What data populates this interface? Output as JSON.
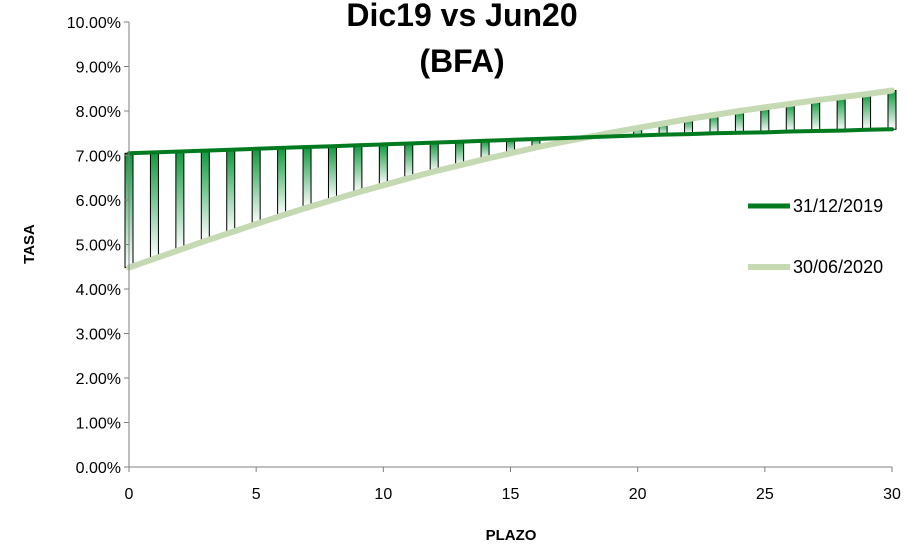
{
  "chart_data": {
    "type": "line",
    "title_line1": "Dic19 vs Jun20",
    "title_line2": "(BFA)",
    "xlabel": "PLAZO",
    "ylabel": "TASA",
    "xlim": [
      0,
      30
    ],
    "ylim": [
      0,
      10
    ],
    "x_ticks": [
      "0",
      "5",
      "10",
      "15",
      "20",
      "25",
      "30"
    ],
    "y_ticks": [
      "0.00%",
      "1.00%",
      "2.00%",
      "3.00%",
      "4.00%",
      "5.00%",
      "6.00%",
      "7.00%",
      "8.00%",
      "9.00%",
      "10.00%"
    ],
    "legend_position": "right",
    "x": [
      0,
      1,
      2,
      3,
      4,
      5,
      6,
      7,
      8,
      9,
      10,
      11,
      12,
      13,
      14,
      15,
      16,
      17,
      18,
      19,
      20,
      21,
      22,
      23,
      24,
      25,
      26,
      27,
      28,
      29,
      30
    ],
    "series": [
      {
        "name": "31/12/2019",
        "color": "#007a1f",
        "values": [
          7.05,
          7.07,
          7.09,
          7.11,
          7.13,
          7.15,
          7.17,
          7.19,
          7.21,
          7.23,
          7.25,
          7.27,
          7.29,
          7.31,
          7.33,
          7.35,
          7.37,
          7.39,
          7.41,
          7.43,
          7.45,
          7.47,
          7.48,
          7.5,
          7.51,
          7.52,
          7.54,
          7.55,
          7.56,
          7.58,
          7.59
        ]
      },
      {
        "name": "30/06/2020",
        "color": "#c5d9b2",
        "values": [
          4.48,
          4.68,
          4.88,
          5.08,
          5.27,
          5.46,
          5.65,
          5.83,
          6.0,
          6.17,
          6.33,
          6.49,
          6.64,
          6.78,
          6.92,
          7.05,
          7.18,
          7.3,
          7.41,
          7.52,
          7.62,
          7.72,
          7.82,
          7.91,
          8.0,
          8.08,
          8.16,
          8.24,
          8.31,
          8.38,
          8.46
        ]
      }
    ]
  }
}
